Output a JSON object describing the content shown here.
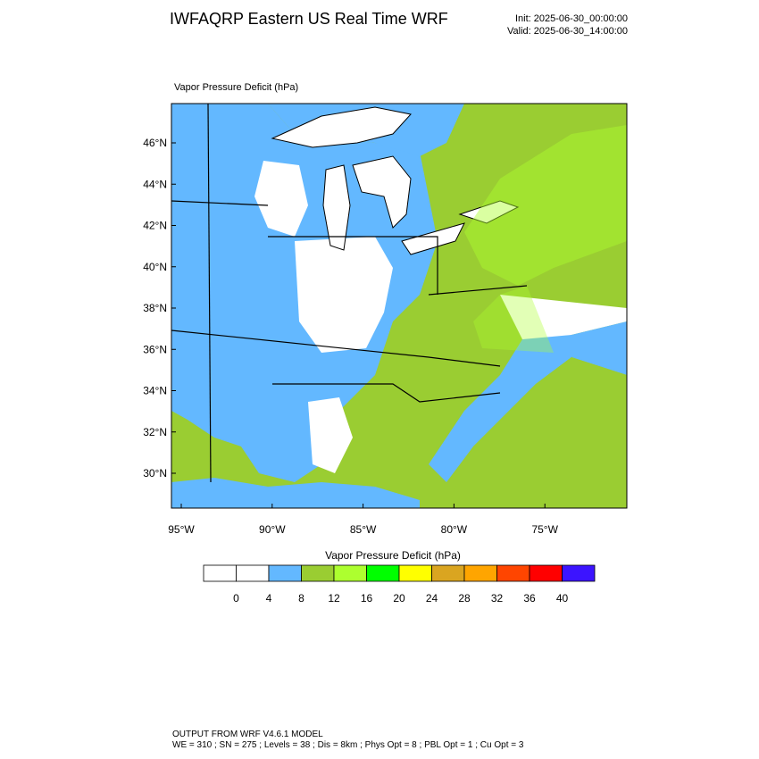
{
  "header": {
    "title": "IWFAQRP Eastern US Real Time WRF",
    "init": "Init: 2025-06-30_00:00:00",
    "valid": "Valid: 2025-06-30_14:00:00"
  },
  "map": {
    "title": "Vapor Pressure Deficit   (hPa)",
    "lat_labels": [
      "46°N",
      "44°N",
      "42°N",
      "40°N",
      "38°N",
      "36°N",
      "34°N",
      "32°N",
      "30°N"
    ],
    "lon_labels": [
      "95°W",
      "90°W",
      "85°W",
      "80°W",
      "75°W"
    ]
  },
  "colorbar": {
    "title": "Vapor Pressure Deficit  (hPa)",
    "colors": [
      "#ffffff",
      "#ffffff",
      "#63b8ff",
      "#9acd32",
      "#adff2f",
      "#00ff00",
      "#ffff00",
      "#daa520",
      "#ffa500",
      "#ff4500",
      "#ff0000",
      "#3c14ff"
    ],
    "labels": [
      "0",
      "4",
      "8",
      "12",
      "16",
      "20",
      "24",
      "28",
      "32",
      "36",
      "40"
    ]
  },
  "footer": {
    "line1": "OUTPUT FROM WRF V4.6.1 MODEL",
    "line2": "WE = 310 ; SN = 275 ; Levels = 38 ; Dis = 8km ; Phys Opt = 8 ; PBL Opt = 1 ; Cu Opt = 3"
  }
}
